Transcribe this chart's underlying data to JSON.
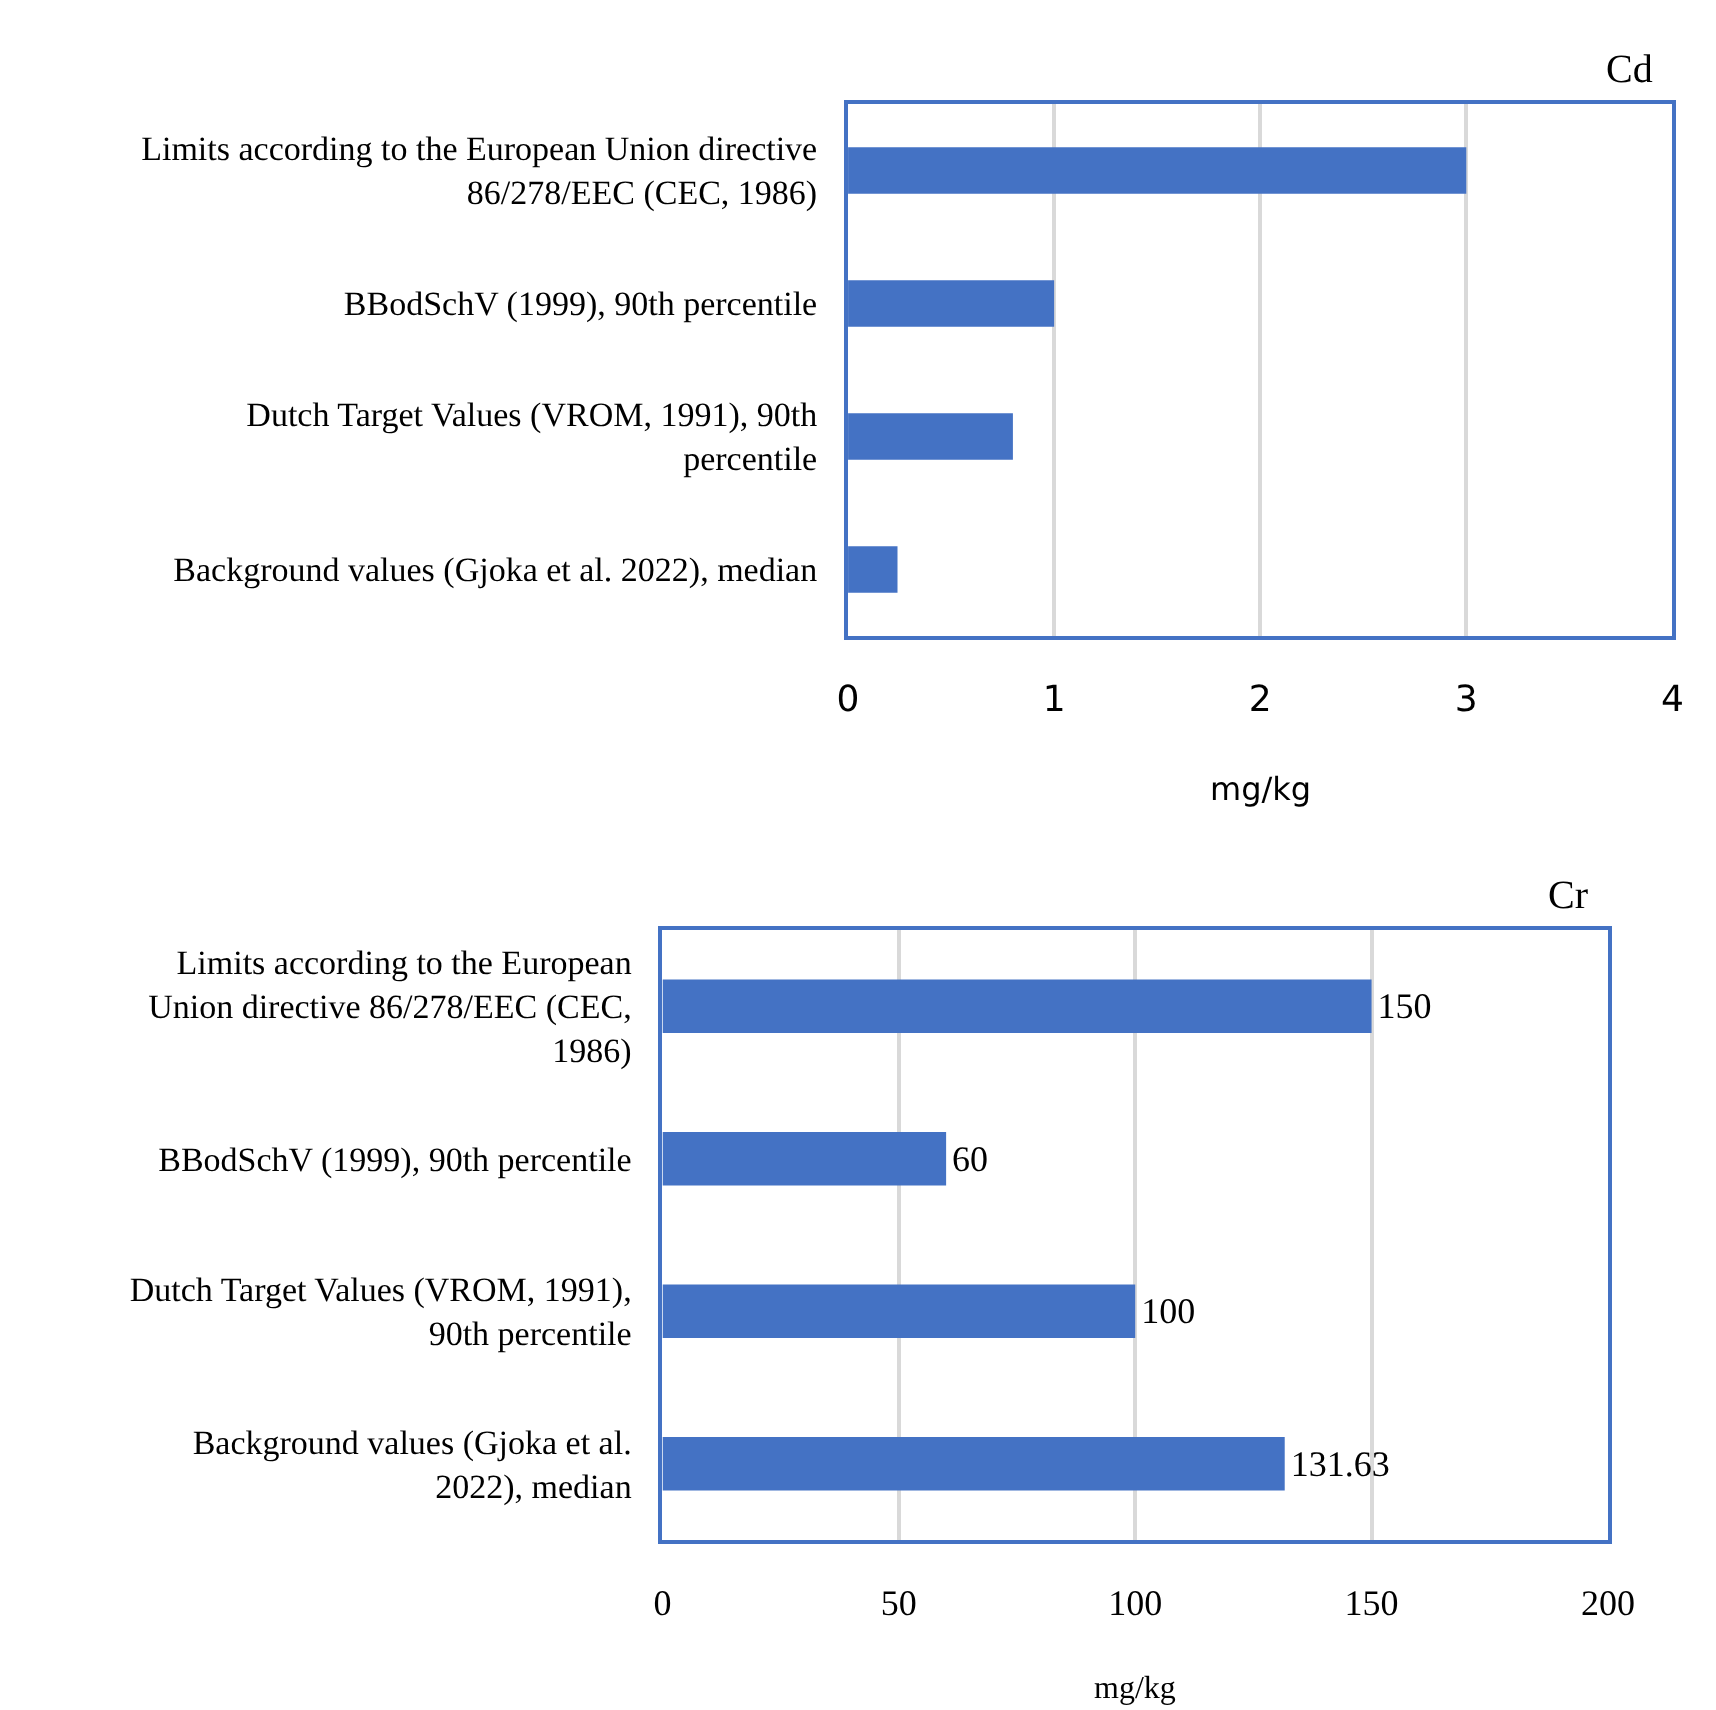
{
  "chart_data": [
    {
      "type": "bar",
      "orientation": "horizontal",
      "title": "Cd",
      "xlabel": "mg/kg",
      "categories": [
        "Limits according to the European Union directive 86/278/EEC (CEC, 1986)",
        "BBodSchV (1999), 90th percentile",
        "Dutch Target Values (VROM, 1991), 90th percentile",
        "Background values (Gjoka et al. 2022), median"
      ],
      "values": [
        3,
        1,
        0.8,
        0.24
      ],
      "color": "#4472c4",
      "xlim": [
        0,
        4
      ],
      "xticks": [
        0,
        1,
        2,
        3,
        4
      ],
      "grid": "x"
    },
    {
      "type": "bar",
      "orientation": "horizontal",
      "title": "Cr",
      "xlabel": "mg/kg",
      "categories": [
        "Limits according to the European Union directive 86/278/EEC (CEC, 1986)",
        "BBodSchV (1999), 90th percentile",
        "Dutch Target Values (VROM, 1991), 90th percentile",
        "Background values (Gjoka et al. 2022), median"
      ],
      "values": [
        150,
        60,
        100,
        131.63
      ],
      "color": "#4472c4",
      "xlim": [
        0,
        200
      ],
      "xticks": [
        0,
        50,
        100,
        150,
        200
      ],
      "grid": "x",
      "data_labels": true
    }
  ]
}
